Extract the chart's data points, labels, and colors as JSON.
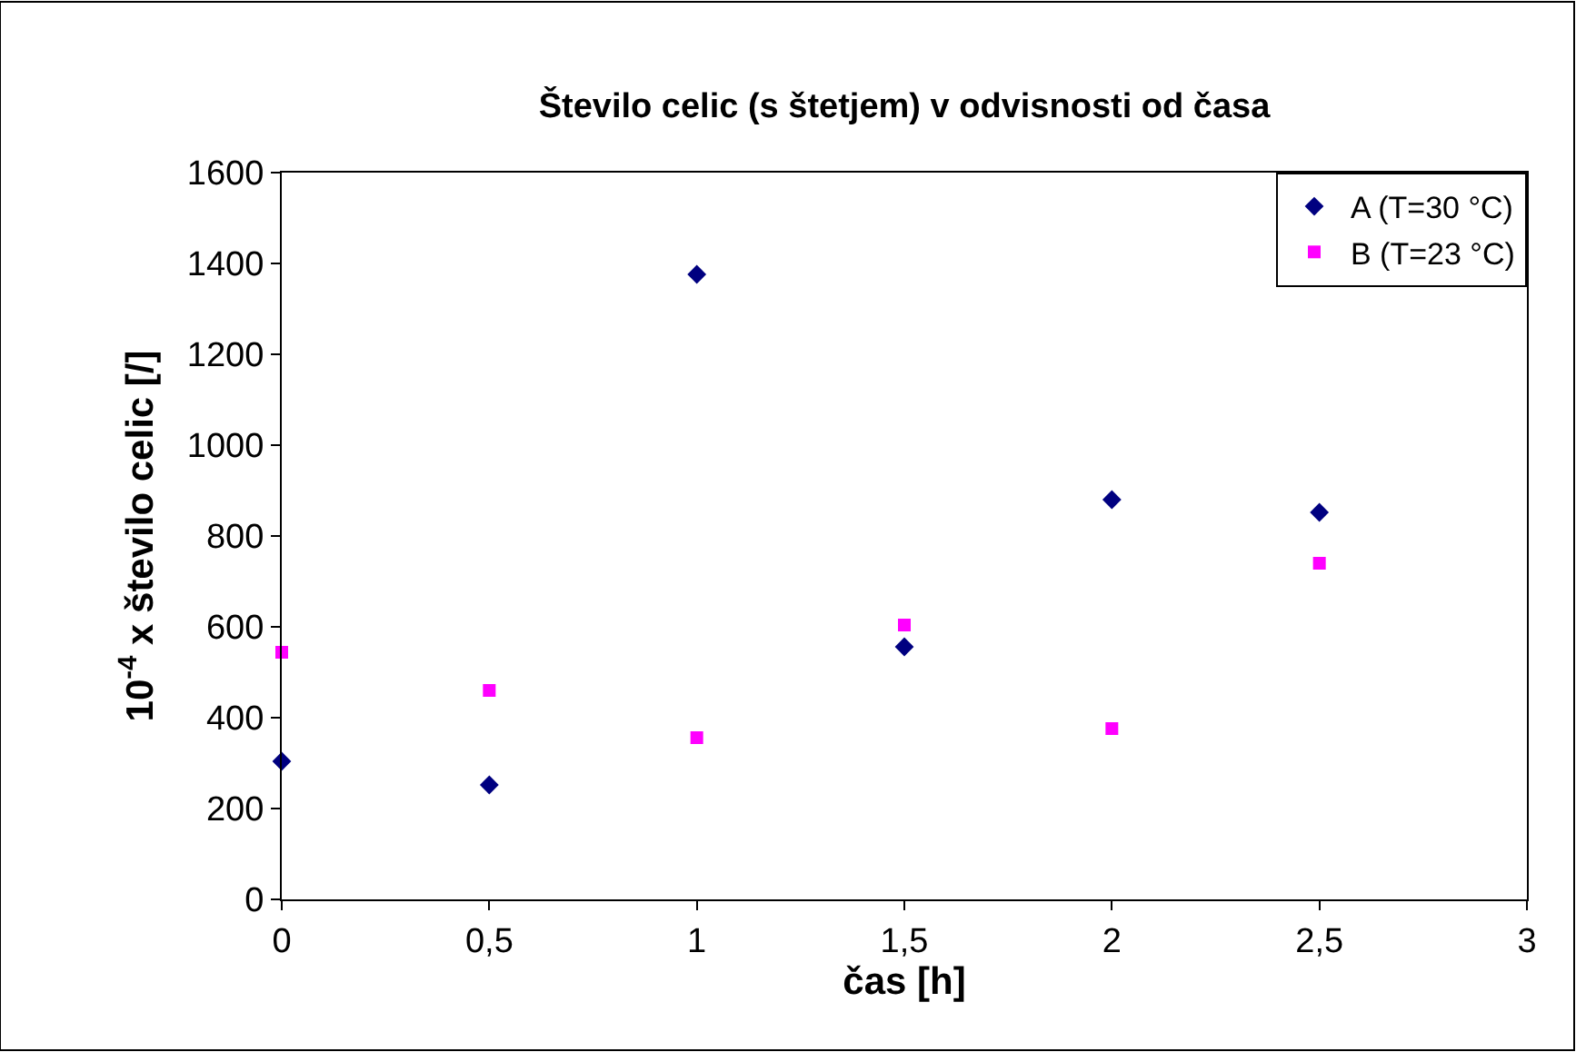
{
  "chart_data": {
    "type": "scatter",
    "title": "Število celic (s štetjem) v odvisnosti od časa",
    "xlabel": "čas [h]",
    "ylabel": "10$^{-4}$ x število celic [/]",
    "x": [
      0,
      0.5,
      1,
      1.5,
      2,
      2.5
    ],
    "series": [
      {
        "name": "A (T=30 °C)",
        "color": "#000080",
        "marker": "diamond",
        "values": [
          304,
          252,
          1376,
          556,
          880,
          852
        ]
      },
      {
        "name": "B (T=23 °C)",
        "color": "#ff00ff",
        "marker": "square",
        "values": [
          544,
          460,
          356,
          604,
          376,
          740
        ]
      }
    ],
    "xlim": [
      0,
      3
    ],
    "xticks": [
      0,
      {
        "value": 0.5,
        "label": "0,5"
      },
      1,
      {
        "value": 1.5,
        "label": "1,5"
      },
      2,
      {
        "value": 2.5,
        "label": "2,5"
      },
      3
    ],
    "ylim": [
      0,
      1600
    ],
    "yticks": [
      0,
      200,
      400,
      600,
      800,
      1000,
      1200,
      1400,
      1600
    ],
    "grid": false,
    "legend": "top right"
  }
}
